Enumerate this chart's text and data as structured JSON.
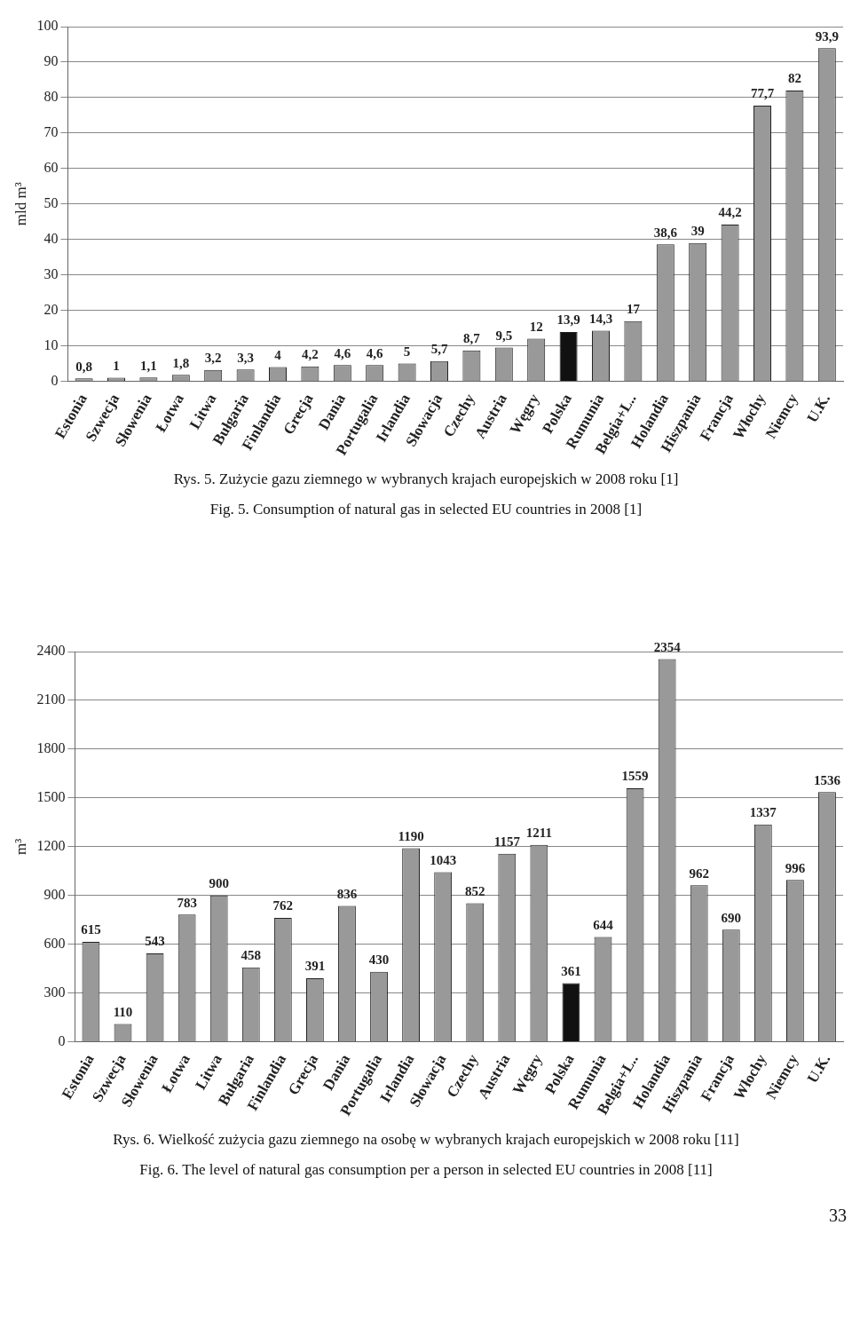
{
  "chart_data": [
    {
      "type": "bar",
      "ylabel": "mld m³",
      "categories": [
        "Estonia",
        "Szwecja",
        "Słowenia",
        "Łotwa",
        "Litwa",
        "Bułgaria",
        "Finlandia",
        "Grecja",
        "Dania",
        "Portugalia",
        "Irlandia",
        "Słowacja",
        "Czechy",
        "Austria",
        "Węgry",
        "Polska",
        "Rumunia",
        "Belgia+L..",
        "Holandia",
        "Hiszpania",
        "Francja",
        "Włochy",
        "Niemcy",
        "U.K."
      ],
      "values": [
        0.8,
        1,
        1.1,
        1.8,
        3.2,
        3.3,
        4,
        4.2,
        4.6,
        4.6,
        5,
        5.7,
        8.7,
        9.5,
        12,
        13.9,
        14.3,
        17,
        38.6,
        39,
        44.2,
        77.7,
        82,
        93.9
      ],
      "value_labels": [
        "0,8",
        "1",
        "1,1",
        "1,8",
        "3,2",
        "3,3",
        "4",
        "4,2",
        "4,6",
        "4,6",
        "5",
        "5,7",
        "8,7",
        "9,5",
        "12",
        "13,9",
        "14,3",
        "17",
        "38,6",
        "39",
        "44,2",
        "77,7",
        "82",
        "93,9"
      ],
      "colors": [
        "#999999",
        "#999999",
        "#999999",
        "#999999",
        "#999999",
        "#999999",
        "#999999",
        "#999999",
        "#999999",
        "#999999",
        "#999999",
        "#999999",
        "#999999",
        "#999999",
        "#999999",
        "#111111",
        "#999999",
        "#999999",
        "#999999",
        "#999999",
        "#999999",
        "#999999",
        "#999999",
        "#999999"
      ],
      "ylim": [
        0,
        100
      ],
      "yticks": [
        0,
        10,
        20,
        30,
        40,
        50,
        60,
        70,
        80,
        90,
        100
      ],
      "grid": "y",
      "legend": false,
      "annotations": [
        "Rys. 5. Zużycie gazu ziemnego w wybranych krajach europejskich w 2008 roku [1]",
        "Fig. 5. Consumption of natural gas in selected EU countries in 2008 [1]"
      ]
    },
    {
      "type": "bar",
      "ylabel": "m³",
      "categories": [
        "Estonia",
        "Szwecja",
        "Słowenia",
        "Łotwa",
        "Litwa",
        "Bułgaria",
        "Finlandia",
        "Grecja",
        "Dania",
        "Portugalia",
        "Irlandia",
        "Słowacja",
        "Czechy",
        "Austria",
        "Węgry",
        "Polska",
        "Rumunia",
        "Belgia+L..",
        "Holandia",
        "Hiszpania",
        "Francja",
        "Włochy",
        "Niemcy",
        "U.K."
      ],
      "values": [
        615,
        110,
        543,
        783,
        900,
        458,
        762,
        391,
        836,
        430,
        1190,
        1043,
        852,
        1157,
        1211,
        361,
        644,
        1559,
        2354,
        962,
        690,
        1337,
        996,
        1536
      ],
      "colors": [
        "#999999",
        "#999999",
        "#999999",
        "#999999",
        "#999999",
        "#999999",
        "#999999",
        "#999999",
        "#999999",
        "#999999",
        "#999999",
        "#999999",
        "#999999",
        "#999999",
        "#999999",
        "#111111",
        "#999999",
        "#999999",
        "#999999",
        "#999999",
        "#999999",
        "#999999",
        "#999999",
        "#999999"
      ],
      "ylim": [
        0,
        2400
      ],
      "yticks": [
        0,
        300,
        600,
        900,
        1200,
        1500,
        1800,
        2100,
        2400
      ],
      "grid": "y",
      "legend": false,
      "data_labels": true,
      "annotations": [
        "Rys. 6. Wielkość zużycia gazu ziemnego na osobę w wybranych krajach europejskich w 2008 roku [11]",
        "Fig. 6. The level of natural gas consumption per a person in selected EU countries in 2008 [11]",
        "33"
      ]
    }
  ]
}
